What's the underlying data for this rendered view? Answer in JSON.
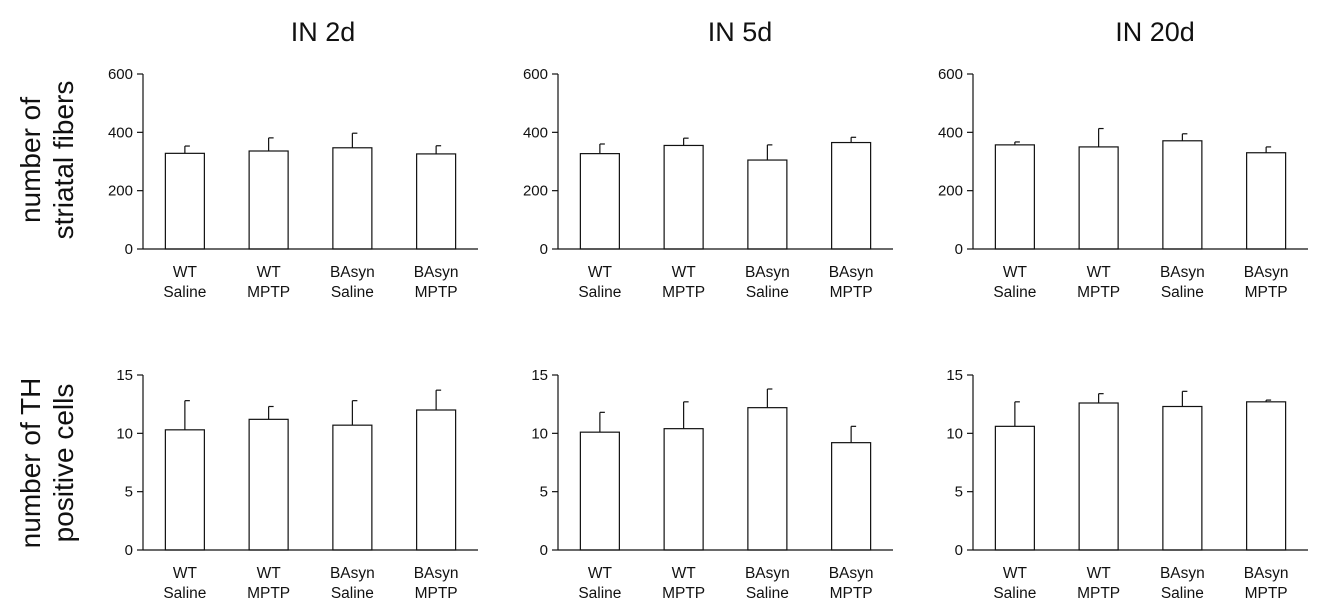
{
  "figure": {
    "column_titles": [
      "IN 2d",
      "IN 5d",
      "IN 20d"
    ],
    "row_labels": [
      [
        "number of",
        "striatal fibers"
      ],
      [
        "number of TH",
        "positive cells"
      ]
    ]
  },
  "chart_data": [
    {
      "type": "bar",
      "title": "IN 2d",
      "ylabel": "number of striatal fibers",
      "categories": [
        [
          "WT",
          "Saline"
        ],
        [
          "WT",
          "MPTP"
        ],
        [
          "BAsyn",
          "Saline"
        ],
        [
          "BAsyn",
          "MPTP"
        ]
      ],
      "values": [
        328,
        336,
        347,
        326
      ],
      "errors": [
        25,
        45,
        50,
        28
      ],
      "ylim": [
        0,
        600
      ],
      "yticks": [
        0,
        200,
        400,
        600
      ],
      "grid": false
    },
    {
      "type": "bar",
      "title": "IN 5d",
      "ylabel": "number of striatal fibers",
      "categories": [
        [
          "WT",
          "Saline"
        ],
        [
          "WT",
          "MPTP"
        ],
        [
          "BAsyn",
          "Saline"
        ],
        [
          "BAsyn",
          "MPTP"
        ]
      ],
      "values": [
        327,
        355,
        305,
        365
      ],
      "errors": [
        33,
        25,
        52,
        18
      ],
      "ylim": [
        0,
        600
      ],
      "yticks": [
        0,
        200,
        400,
        600
      ],
      "grid": false
    },
    {
      "type": "bar",
      "title": "IN 20d",
      "ylabel": "number of striatal fibers",
      "categories": [
        [
          "WT",
          "Saline"
        ],
        [
          "WT",
          "MPTP"
        ],
        [
          "BAsyn",
          "Saline"
        ],
        [
          "BAsyn",
          "MPTP"
        ]
      ],
      "values": [
        357,
        350,
        371,
        330
      ],
      "errors": [
        10,
        63,
        24,
        20
      ],
      "ylim": [
        0,
        600
      ],
      "yticks": [
        0,
        200,
        400,
        600
      ],
      "grid": false
    },
    {
      "type": "bar",
      "title": "IN 2d",
      "ylabel": "number of TH positive cells",
      "categories": [
        [
          "WT",
          "Saline"
        ],
        [
          "WT",
          "MPTP"
        ],
        [
          "BAsyn",
          "Saline"
        ],
        [
          "BAsyn",
          "MPTP"
        ]
      ],
      "values": [
        10.3,
        11.2,
        10.7,
        12.0
      ],
      "errors": [
        2.5,
        1.1,
        2.1,
        1.7
      ],
      "ylim": [
        0,
        15
      ],
      "yticks": [
        0,
        5,
        10,
        15
      ],
      "grid": false
    },
    {
      "type": "bar",
      "title": "IN 5d",
      "ylabel": "number of TH positive cells",
      "categories": [
        [
          "WT",
          "Saline"
        ],
        [
          "WT",
          "MPTP"
        ],
        [
          "BAsyn",
          "Saline"
        ],
        [
          "BAsyn",
          "MPTP"
        ]
      ],
      "values": [
        10.1,
        10.4,
        12.2,
        9.2
      ],
      "errors": [
        1.7,
        2.3,
        1.6,
        1.4
      ],
      "ylim": [
        0,
        15
      ],
      "yticks": [
        0,
        5,
        10,
        15
      ],
      "grid": false
    },
    {
      "type": "bar",
      "title": "IN 20d",
      "ylabel": "number of TH positive cells",
      "categories": [
        [
          "WT",
          "Saline"
        ],
        [
          "WT",
          "MPTP"
        ],
        [
          "BAsyn",
          "Saline"
        ],
        [
          "BAsyn",
          "MPTP"
        ]
      ],
      "values": [
        10.6,
        12.6,
        12.3,
        12.7
      ],
      "errors": [
        2.1,
        0.8,
        1.3,
        0.15
      ],
      "ylim": [
        0,
        15
      ],
      "yticks": [
        0,
        5,
        10,
        15
      ],
      "grid": false
    }
  ]
}
